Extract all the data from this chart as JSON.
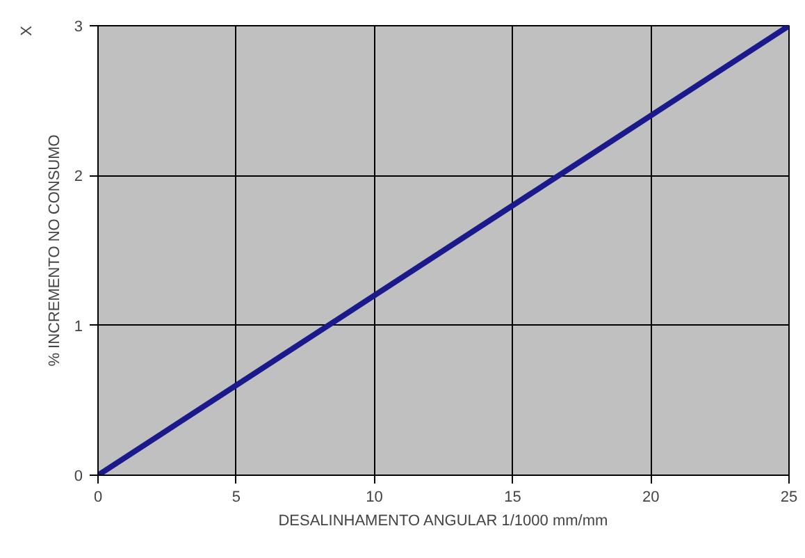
{
  "chart_data": {
    "type": "line",
    "xlabel": "DESALINHAMENTO ANGULAR 1/1000 mm/mm",
    "ylabel": "% INCREMENTO NO CONSUMO",
    "annotations": [
      "X"
    ],
    "x": [
      0,
      25
    ],
    "series": [
      {
        "color": "#1a1a8c",
        "values": [
          0,
          3
        ]
      }
    ],
    "xlim": [
      0,
      25
    ],
    "ylim": [
      0,
      3
    ],
    "xticks": [
      0,
      5,
      10,
      15,
      20,
      25
    ],
    "yticks": [
      0,
      1,
      2,
      3
    ],
    "grid": true,
    "marker": "none",
    "line_style": "solid"
  }
}
